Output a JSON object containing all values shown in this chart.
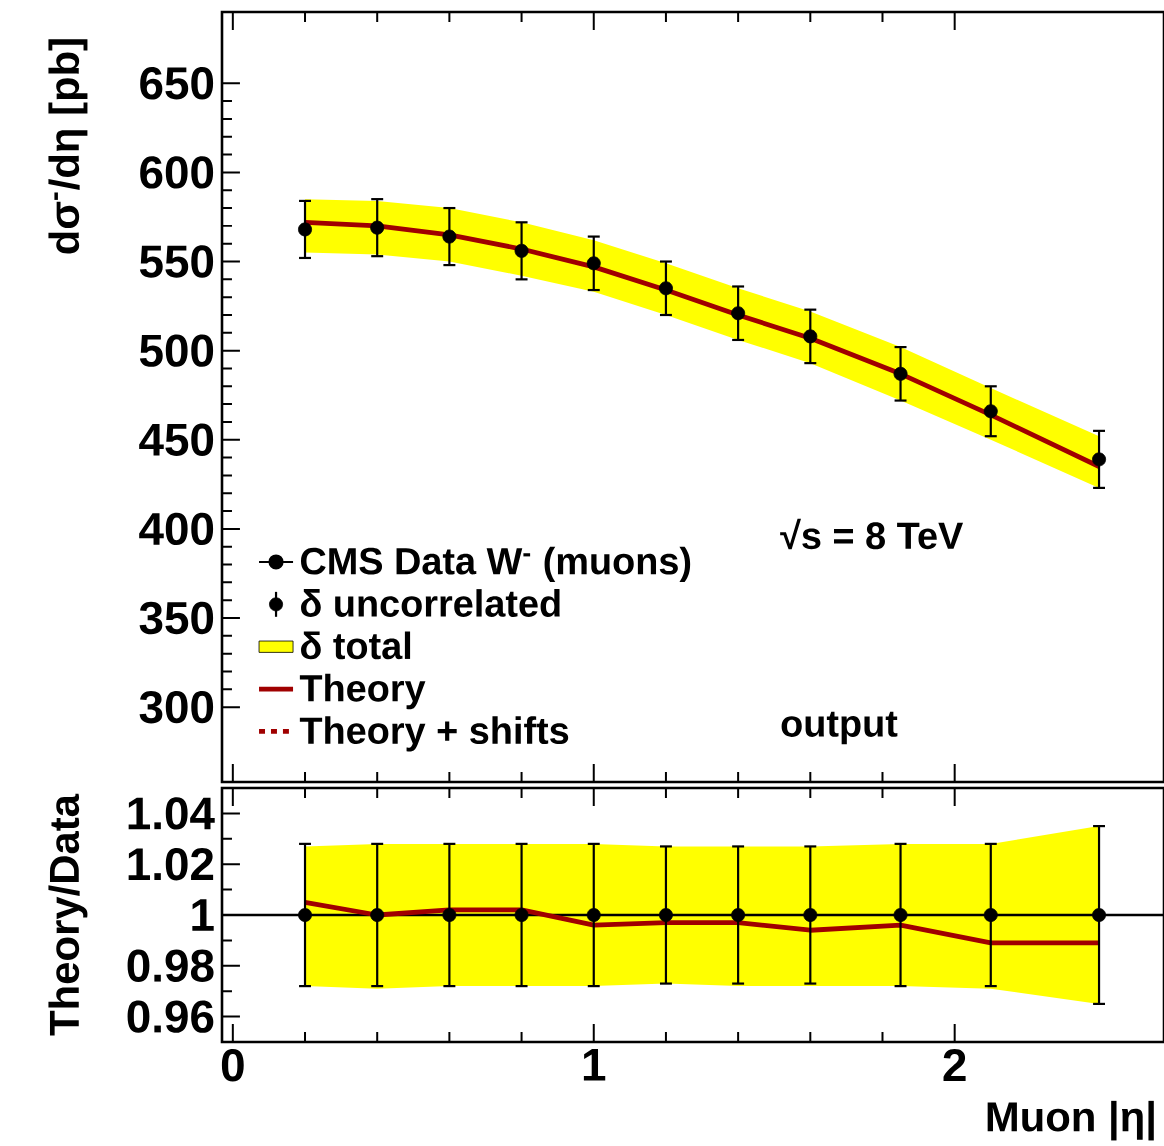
{
  "chart_data": [
    {
      "type": "scatter",
      "ylabel": "dσ$^{-}$/dη [pb]",
      "xlim": [
        -0.03,
        2.58
      ],
      "xticks": [
        0,
        1,
        2
      ],
      "ylim": [
        258,
        690
      ],
      "yticks": [
        300,
        350,
        400,
        450,
        500,
        550,
        600,
        650
      ],
      "tick_labels": "y",
      "legend": "bottom left",
      "x": [
        0.2,
        0.4,
        0.6,
        0.8,
        1.0,
        1.2,
        1.4,
        1.6,
        1.85,
        2.1,
        2.4
      ],
      "series": [
        {
          "name": "CMS Data W$^{-}$ (muons)",
          "color": "#000000",
          "marker": "circle",
          "values": [
            568,
            569,
            564,
            556,
            549,
            535,
            521,
            508,
            487,
            466,
            439
          ],
          "errors": [
            16,
            16,
            16,
            16,
            15,
            15,
            15,
            15,
            15,
            14,
            16
          ]
        },
        {
          "name": "δ uncorrelated",
          "color": "#000000",
          "marker": "circle",
          "values": [
            null,
            null,
            null,
            null,
            null,
            null,
            null,
            null,
            null,
            null,
            null
          ]
        },
        {
          "name": "δ total",
          "type": "area",
          "color": "#ffff00",
          "values": [
            null,
            null,
            null,
            null,
            null,
            null,
            null,
            null,
            null,
            null,
            null
          ]
        },
        {
          "name": "Theory",
          "type": "line",
          "color": "#a00000",
          "line_style": "solid",
          "values": [
            572,
            570,
            565,
            557,
            547,
            534,
            520,
            507,
            487,
            464,
            435
          ],
          "lower": [
            555,
            554,
            550,
            542,
            533,
            520,
            506,
            493,
            472,
            450,
            423
          ],
          "upper": [
            585,
            584,
            580,
            572,
            562,
            549,
            535,
            522,
            502,
            479,
            452
          ]
        },
        {
          "name": "Theory + shifts",
          "type": "line",
          "color": "#a00000",
          "line_style": "dashed",
          "values": [
            null,
            null,
            null,
            null,
            null,
            null,
            null,
            null,
            null,
            null,
            null
          ]
        }
      ],
      "annotations": [
        "√s = 8 TeV",
        "output"
      ]
    },
    {
      "type": "scatter",
      "xlabel": "Muon |η|",
      "ylabel": "Theory/Data",
      "xlim": [
        -0.03,
        2.58
      ],
      "xticks": [
        0,
        1,
        2
      ],
      "ylim": [
        0.95,
        1.05
      ],
      "yticks": [
        0.96,
        0.98,
        1,
        1.02,
        1.04
      ],
      "x": [
        0.2,
        0.4,
        0.6,
        0.8,
        1.0,
        1.2,
        1.4,
        1.6,
        1.85,
        2.1,
        2.4
      ],
      "ref_lines": [
        {
          "axis": "y",
          "value": 1,
          "color": "#000000"
        }
      ],
      "series": [
        {
          "type": "area",
          "color": "#ffff00",
          "values": [
            null,
            null,
            null,
            null,
            null,
            null,
            null,
            null,
            null,
            null,
            null
          ]
        },
        {
          "type": "line",
          "color": "#a00000",
          "line_style": "solid",
          "values": [
            1.005,
            1.0,
            1.002,
            1.002,
            0.996,
            0.997,
            0.997,
            0.994,
            0.996,
            0.989,
            0.989
          ],
          "lower": [
            0.972,
            0.971,
            0.972,
            0.972,
            0.972,
            0.973,
            0.972,
            0.972,
            0.972,
            0.971,
            0.965
          ],
          "upper": [
            1.027,
            1.028,
            1.028,
            1.028,
            1.028,
            1.027,
            1.027,
            1.027,
            1.028,
            1.028,
            1.035
          ]
        },
        {
          "type": "scatter",
          "color": "#000000",
          "marker": "circle",
          "values": [
            1,
            1,
            1,
            1,
            1,
            1,
            1,
            1,
            1,
            1,
            1
          ],
          "errors": [
            0.028,
            0.028,
            0.028,
            0.028,
            0.028,
            0.027,
            0.027,
            0.027,
            0.028,
            0.028,
            0.035
          ]
        }
      ]
    }
  ]
}
